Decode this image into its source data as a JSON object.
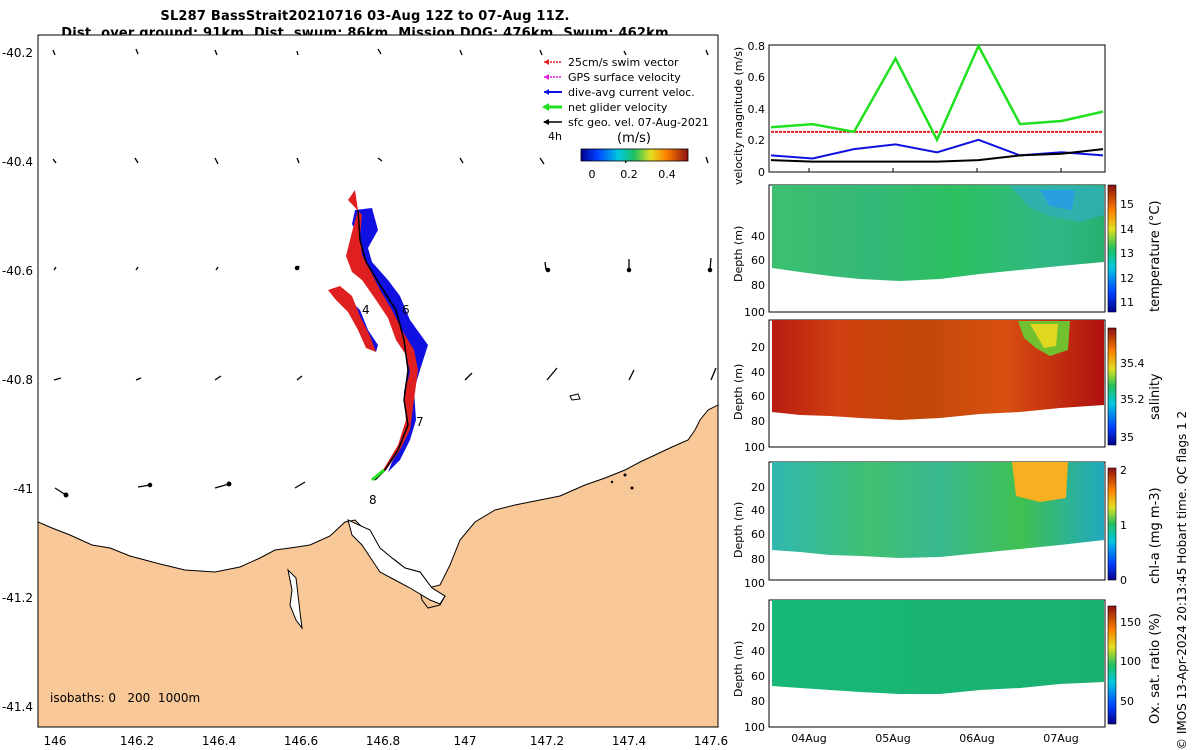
{
  "title": {
    "line1": "SL287 BassStrait20210716 03-Aug 12Z to 07-Aug 11Z.",
    "line2": "Dist. over ground: 91km. Dist. swum: 86km. Mission DOG: 476km. Swum: 462km"
  },
  "map": {
    "lat_ticks": [
      "-40.2",
      "-40.4",
      "-40.6",
      "-40.8",
      "-41",
      "-41.2",
      "-41.4"
    ],
    "lon_ticks": [
      "146",
      "146.2",
      "146.4",
      "146.6",
      "146.8",
      "147",
      "147.2",
      "147.4",
      "147.6"
    ],
    "legend": [
      {
        "label": "25cm/s swim vector",
        "color": "#e02020"
      },
      {
        "label": "GPS surface velocity",
        "color": "#e020e0"
      },
      {
        "label": "dive-avg current veloc.",
        "color": "#1010e0"
      },
      {
        "label": "net glider velocity",
        "color": "#20e020"
      },
      {
        "label": "sfc geo. vel. 07-Aug-2021",
        "color": "#000000"
      }
    ],
    "vector_interval": "4h",
    "colorbar_unit": "(m/s)",
    "colorbar_ticks": [
      "0",
      "0.2",
      "0.4"
    ],
    "day_labels": [
      "4",
      "6",
      "7",
      "8"
    ],
    "isobaths": "isobaths: 0   200  1000m",
    "land_color": "#f8c898"
  },
  "chart_data": [
    {
      "type": "line",
      "ylabel": "velocity magnitude (m/s)",
      "ylim": [
        0,
        0.8
      ],
      "yticks": [
        "0",
        "0.2",
        "0.4",
        "0.6",
        "0.8"
      ],
      "x_ticks": [
        "04Aug",
        "05Aug",
        "06Aug",
        "07Aug"
      ],
      "series": [
        {
          "name": "swim speed",
          "color": "#e02020",
          "values": [
            0.25,
            0.25,
            0.25,
            0.25,
            0.25,
            0.25,
            0.25,
            0.25
          ]
        },
        {
          "name": "net glider velocity",
          "color": "#20e020",
          "values": [
            0.28,
            0.3,
            0.25,
            0.72,
            0.2,
            0.8,
            0.3,
            0.32,
            0.38
          ]
        },
        {
          "name": "dive-avg current",
          "color": "#1010e0",
          "values": [
            0.1,
            0.08,
            0.14,
            0.17,
            0.12,
            0.2,
            0.1,
            0.12,
            0.1
          ]
        },
        {
          "name": "sfc geo vel",
          "color": "#000000",
          "values": [
            0.07,
            0.06,
            0.06,
            0.06,
            0.06,
            0.07,
            0.1,
            0.11,
            0.14
          ]
        }
      ]
    },
    {
      "type": "heatmap",
      "ylabel": "Depth (m)",
      "cbar_label": "temperature (°C)",
      "cbar_ticks": [
        "11",
        "12",
        "13",
        "14",
        "15"
      ],
      "yticks": [
        "20",
        "40",
        "60",
        "80",
        "100"
      ],
      "x_ticks": [
        "04Aug",
        "05Aug",
        "06Aug",
        "07Aug"
      ]
    },
    {
      "type": "heatmap",
      "ylabel": "Depth (m)",
      "cbar_label": "salinity",
      "cbar_ticks": [
        "35",
        "35.2",
        "35.4"
      ],
      "yticks": [
        "20",
        "40",
        "60",
        "80",
        "100"
      ],
      "x_ticks": [
        "04Aug",
        "05Aug",
        "06Aug",
        "07Aug"
      ]
    },
    {
      "type": "heatmap",
      "ylabel": "Depth (m)",
      "cbar_label": "chl-a (mg m-3)",
      "cbar_ticks": [
        "0",
        "1",
        "2"
      ],
      "yticks": [
        "20",
        "40",
        "60",
        "80",
        "100"
      ],
      "x_ticks": [
        "04Aug",
        "05Aug",
        "06Aug",
        "07Aug"
      ]
    },
    {
      "type": "heatmap",
      "ylabel": "Depth (m)",
      "cbar_label": "Ox. sat. ratio (%)",
      "cbar_ticks": [
        "50",
        "100",
        "150"
      ],
      "yticks": [
        "20",
        "40",
        "60",
        "80",
        "100"
      ],
      "x_ticks": [
        "04Aug",
        "05Aug",
        "06Aug",
        "07Aug"
      ]
    }
  ],
  "credit": "© IMOS 13-Apr-2024 20:13:45 Hobart time. QC flags 1  2"
}
